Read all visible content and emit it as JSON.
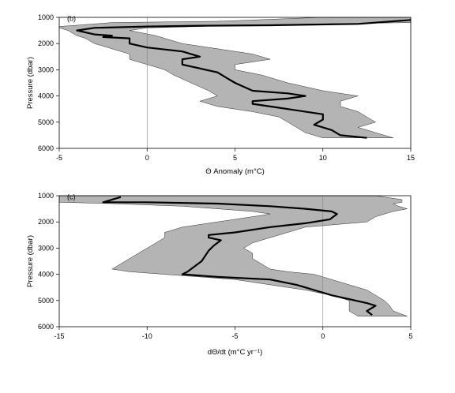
{
  "chart_data": [
    {
      "type": "line",
      "panel_label": "(b)",
      "xlabel": "Θ Anomaly (m°C)",
      "ylabel": "Pressure (dbar)",
      "xlim": [
        -5,
        15
      ],
      "ylim": [
        6000,
        1000
      ],
      "y_inverted": true,
      "xticks": [
        "-5",
        "0",
        "5",
        "10",
        "15"
      ],
      "yticks": [
        "1000",
        "2000",
        "3000",
        "4000",
        "5000",
        "6000"
      ],
      "grid": false,
      "zero_line": true,
      "band_color": "#b4b4b4",
      "line_color": "#000000",
      "mean": {
        "x": [
          15,
          12,
          7,
          3,
          0,
          -3,
          -4,
          -3,
          -2,
          -2.5,
          -1,
          -1,
          0,
          2,
          3,
          2,
          2,
          4,
          4.5,
          5,
          6,
          8,
          9,
          8,
          6,
          6,
          7,
          8,
          10,
          10,
          9.5,
          10.5,
          11,
          12.5
        ],
        "y": [
          1100,
          1250,
          1300,
          1320,
          1350,
          1400,
          1500,
          1650,
          1700,
          1750,
          1800,
          2000,
          2150,
          2300,
          2500,
          2600,
          2800,
          3100,
          3300,
          3500,
          3800,
          3900,
          4000,
          4100,
          4200,
          4300,
          4400,
          4500,
          4700,
          4900,
          5100,
          5300,
          5500,
          5600
        ]
      },
      "band": {
        "y": [
          1000,
          1150,
          1200,
          1300,
          1350,
          1400,
          1500,
          1700,
          1800,
          2000,
          2200,
          2400,
          2600,
          2800,
          3000,
          3200,
          3500,
          3800,
          4000,
          4200,
          4400,
          4600,
          4800,
          5000,
          5200,
          5400,
          5600
        ],
        "x_low": [
          10,
          4,
          -2,
          -4,
          -5,
          -5,
          -4.5,
          -4,
          -3.5,
          -3,
          -2,
          -1,
          -1,
          0,
          1,
          1.5,
          2.5,
          3.5,
          4,
          3,
          4,
          6,
          7.5,
          8,
          8.5,
          9,
          10
        ],
        "x_high": [
          15,
          15,
          15,
          5,
          3,
          0,
          -1,
          0.5,
          1,
          2,
          4,
          6,
          7,
          5,
          5,
          6.5,
          8,
          10,
          12,
          11,
          11,
          12,
          12.5,
          13,
          12,
          13,
          14
        ]
      }
    },
    {
      "type": "line",
      "panel_label": "(c)",
      "xlabel": "dΘ/dt (m°C yr⁻¹)",
      "ylabel": "Pressure (dbar)",
      "xlim": [
        -15,
        5
      ],
      "ylim": [
        6000,
        1000
      ],
      "y_inverted": true,
      "xticks": [
        "-15",
        "-10",
        "-5",
        "0",
        "5"
      ],
      "yticks": [
        "1000",
        "2000",
        "3000",
        "4000",
        "5000",
        "6000"
      ],
      "grid": false,
      "zero_line": true,
      "band_color": "#b4b4b4",
      "line_color": "#000000",
      "mean": {
        "x": [
          -11.5,
          -12.5,
          -10,
          -6,
          -3,
          -1,
          0.5,
          0.8,
          0.4,
          -1,
          -3,
          -5,
          -6.5,
          -6.5,
          -5.8,
          -6.2,
          -6.5,
          -6.7,
          -6.9,
          -7.3,
          -7.7,
          -8,
          -6,
          -3,
          -1.5,
          -0.5,
          0.5,
          1.5,
          2.5,
          3,
          2.5,
          2.8
        ],
        "y": [
          1050,
          1250,
          1250,
          1300,
          1400,
          1500,
          1600,
          1700,
          1900,
          2050,
          2200,
          2400,
          2500,
          2600,
          2700,
          2900,
          3100,
          3300,
          3500,
          3700,
          3900,
          4000,
          4100,
          4200,
          4400,
          4600,
          4800,
          4950,
          5100,
          5200,
          5400,
          5550
        ]
      },
      "band": {
        "y": [
          1000,
          1150,
          1250,
          1300,
          1400,
          1500,
          1600,
          1700,
          1800,
          2000,
          2200,
          2400,
          2600,
          2800,
          3000,
          3200,
          3400,
          3600,
          3800,
          3900,
          4000,
          4200,
          4400,
          4600,
          4800,
          5000,
          5200,
          5400,
          5600
        ],
        "x_low": [
          -15,
          -15,
          -15,
          -12,
          -8,
          -6,
          -4,
          -3,
          -4,
          -6,
          -8,
          -9,
          -9,
          -9.5,
          -10,
          -10.5,
          -11,
          -11.5,
          -12,
          -11,
          -9,
          -5,
          -3,
          -1,
          0.5,
          1.5,
          1.5,
          1.5,
          2
        ],
        "x_high": [
          3,
          4.5,
          4.5,
          4,
          4.3,
          4.8,
          4,
          3.5,
          3,
          2.5,
          -1,
          -2,
          -3,
          -4,
          -4.5,
          -4,
          -4,
          -3.5,
          -3,
          -2,
          -0.5,
          0.5,
          1.5,
          2.5,
          3,
          3.5,
          3.8,
          4,
          4.8
        ]
      }
    }
  ]
}
